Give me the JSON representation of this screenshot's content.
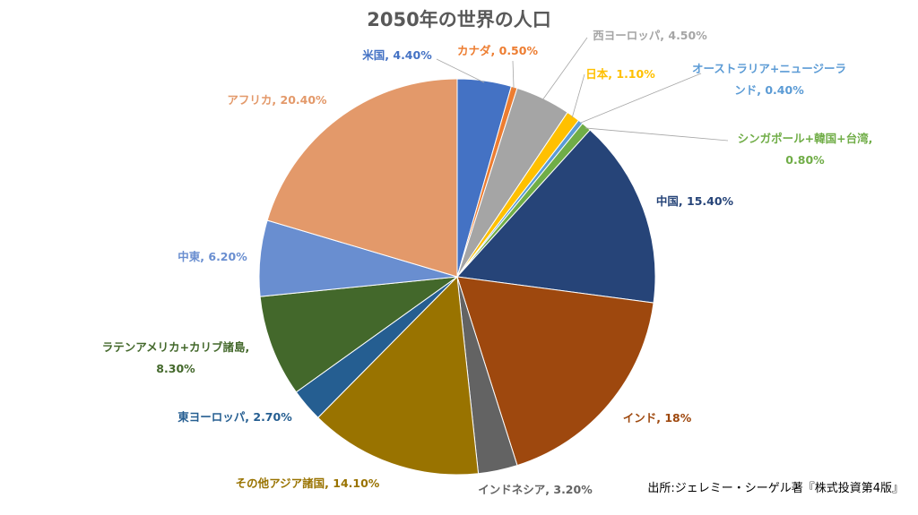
{
  "chart_data": {
    "type": "pie",
    "title": "2050年の世界の人口",
    "unit": "%",
    "slices": [
      {
        "name": "米国",
        "value": 4.4,
        "label": "米国, 4.40%",
        "color": "#4472C4"
      },
      {
        "name": "カナダ",
        "value": 0.5,
        "label": "カナダ, 0.50%",
        "color": "#ED7D31"
      },
      {
        "name": "西ヨーロッパ",
        "value": 4.5,
        "label": "西ヨーロッパ, 4.50%",
        "color": "#A5A5A5"
      },
      {
        "name": "日本",
        "value": 1.1,
        "label": "日本, 1.10%",
        "color": "#FFC000"
      },
      {
        "name": "オーストラリア+ニュージーランド",
        "value": 0.4,
        "label": "オーストラリア+ニュージーラ",
        "label2": "ンド, 0.40%",
        "color": "#5B9BD5"
      },
      {
        "name": "シンガポール+韓国+台湾",
        "value": 0.8,
        "label": "シンガポール+韓国+台湾,",
        "label2": "0.80%",
        "color": "#70AD47"
      },
      {
        "name": "中国",
        "value": 15.4,
        "label": "中国, 15.40%",
        "color": "#264478"
      },
      {
        "name": "インド",
        "value": 18,
        "label": "インド, 18%",
        "color": "#9E480E"
      },
      {
        "name": "インドネシア",
        "value": 3.2,
        "label": "インドネシア, 3.20%",
        "color": "#636363"
      },
      {
        "name": "その他アジア諸国",
        "value": 14.1,
        "label": "その他アジア諸国, 14.10%",
        "color": "#997300"
      },
      {
        "name": "東ヨーロッパ",
        "value": 2.7,
        "label": "東ヨーロッパ, 2.70%",
        "color": "#255E91"
      },
      {
        "name": "ラテンアメリカ+カリブ諸島",
        "value": 8.3,
        "label": "ラテンアメリカ+カリブ諸島,",
        "label2": "8.30%",
        "color": "#43682B"
      },
      {
        "name": "中東",
        "value": 6.2,
        "label": "中東, 6.20%",
        "color": "#698ED0"
      },
      {
        "name": "アフリカ",
        "value": 20.4,
        "label": "アフリカ, 20.40%",
        "color": "#E3996A"
      }
    ],
    "source": "出所:ジェレミー・シーゲル著『株式投資第4版』"
  }
}
